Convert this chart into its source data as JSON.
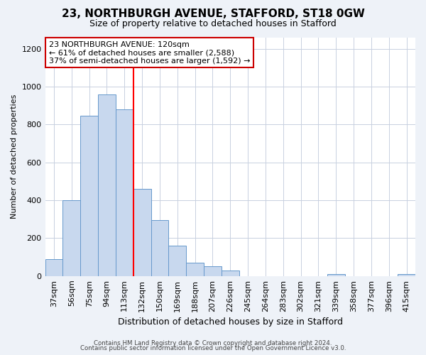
{
  "title": "23, NORTHBURGH AVENUE, STAFFORD, ST18 0GW",
  "subtitle": "Size of property relative to detached houses in Stafford",
  "xlabel": "Distribution of detached houses by size in Stafford",
  "ylabel": "Number of detached properties",
  "categories": [
    "37sqm",
    "56sqm",
    "75sqm",
    "94sqm",
    "113sqm",
    "132sqm",
    "150sqm",
    "169sqm",
    "188sqm",
    "207sqm",
    "226sqm",
    "245sqm",
    "264sqm",
    "283sqm",
    "302sqm",
    "321sqm",
    "339sqm",
    "358sqm",
    "377sqm",
    "396sqm",
    "415sqm"
  ],
  "values": [
    90,
    400,
    845,
    960,
    880,
    460,
    295,
    160,
    70,
    50,
    30,
    0,
    0,
    0,
    0,
    0,
    10,
    0,
    0,
    0,
    10
  ],
  "bar_color": "#c8d8ee",
  "bar_edge_color": "#6699cc",
  "red_line_index": 4.5,
  "annotation_title": "23 NORTHBURGH AVENUE: 120sqm",
  "annotation_line1": "← 61% of detached houses are smaller (2,588)",
  "annotation_line2": "37% of semi-detached houses are larger (1,592) →",
  "annotation_box_facecolor": "#ffffff",
  "annotation_box_edgecolor": "#cc0000",
  "footer1": "Contains HM Land Registry data © Crown copyright and database right 2024.",
  "footer2": "Contains public sector information licensed under the Open Government Licence v3.0.",
  "ylim": [
    0,
    1260
  ],
  "background_color": "#eef2f8",
  "plot_bg_color": "#ffffff",
  "grid_color": "#c8d0e0",
  "title_fontsize": 11,
  "subtitle_fontsize": 9
}
